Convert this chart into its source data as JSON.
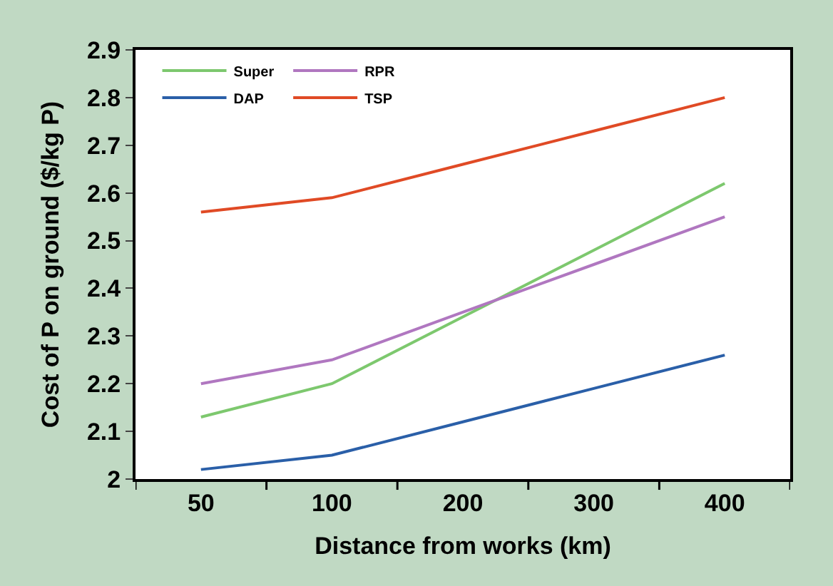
{
  "chart_data": {
    "type": "line",
    "xlabel": "Distance from works (km)",
    "ylabel": "Cost of P on ground ($/kg P)",
    "categories": [
      "50",
      "100",
      "200",
      "300",
      "400"
    ],
    "series": [
      {
        "name": "Super",
        "color": "#7dc86e",
        "values": [
          2.13,
          2.2,
          2.34,
          2.48,
          2.62
        ]
      },
      {
        "name": "RPR",
        "color": "#b077c0",
        "values": [
          2.2,
          2.25,
          2.35,
          2.45,
          2.55
        ]
      },
      {
        "name": "DAP",
        "color": "#2a5fa8",
        "values": [
          2.02,
          2.05,
          2.12,
          2.19,
          2.26
        ]
      },
      {
        "name": "TSP",
        "color": "#e04a25",
        "values": [
          2.56,
          2.59,
          2.66,
          2.73,
          2.8
        ]
      }
    ],
    "ylim": [
      2,
      2.9
    ],
    "yticks": [
      2,
      2.1,
      2.2,
      2.3,
      2.4,
      2.5,
      2.6,
      2.7,
      2.8,
      2.9
    ],
    "legend": "top left",
    "marker": "none",
    "line_style": "solid"
  }
}
